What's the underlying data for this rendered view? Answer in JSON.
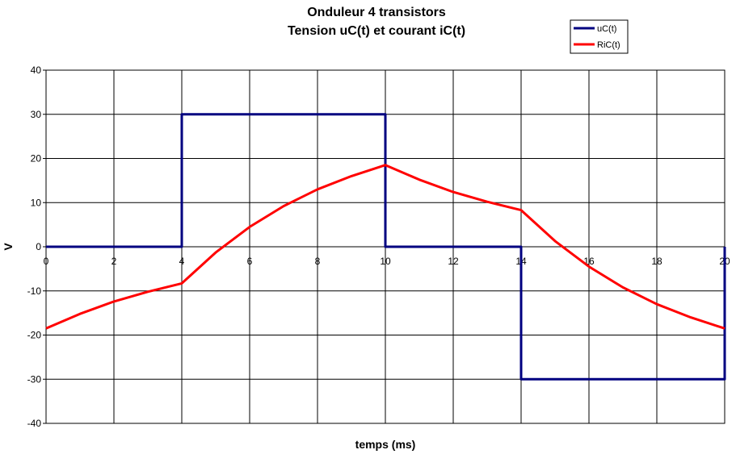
{
  "chart_data": {
    "type": "line",
    "title": "Onduleur 4 transistors",
    "subtitle": "Tension uC(t) et courant iC(t)",
    "xlabel": "temps (ms)",
    "ylabel": "V",
    "xlim": [
      0,
      20
    ],
    "ylim": [
      -40,
      40
    ],
    "xticks": [
      0,
      2,
      4,
      6,
      8,
      10,
      12,
      14,
      16,
      18,
      20
    ],
    "yticks": [
      40,
      30,
      20,
      10,
      0,
      -10,
      -20,
      -30,
      -40
    ],
    "grid": true,
    "legend_position": "top-right",
    "series": [
      {
        "name": "uC(t)",
        "color": "#000080",
        "x": [
          0,
          4,
          4,
          10,
          10,
          14,
          14,
          20,
          20
        ],
        "y": [
          0,
          0,
          30,
          30,
          0,
          0,
          -30,
          -30,
          0
        ]
      },
      {
        "name": "RiC(t)",
        "color": "#ff0000",
        "x": [
          0,
          1,
          2,
          3,
          4,
          5,
          6,
          7,
          8,
          9,
          10,
          11,
          12,
          13,
          14,
          15,
          16,
          17,
          18,
          19,
          20
        ],
        "y": [
          -18.5,
          -15.2,
          -12.4,
          -10.2,
          -8.3,
          -1.3,
          4.5,
          9.2,
          13.0,
          16.0,
          18.5,
          15.2,
          12.4,
          10.2,
          8.3,
          1.3,
          -4.5,
          -9.2,
          -13.0,
          -16.0,
          -18.5
        ]
      }
    ]
  }
}
